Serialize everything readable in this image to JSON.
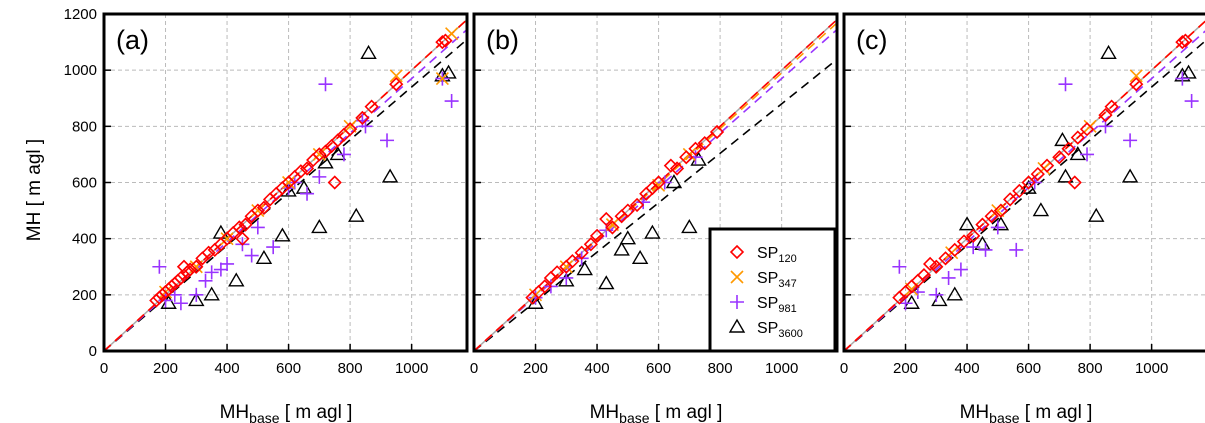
{
  "figure": {
    "ylabel": "MH [ m agl ]",
    "xlabel_main": "MH",
    "xlabel_sub": "base",
    "xlabel_unit": " [ m agl ]"
  },
  "legend": [
    {
      "name": "SP",
      "sub": "120",
      "marker": "diamond",
      "color": "#ff0000"
    },
    {
      "name": "SP",
      "sub": "347",
      "marker": "x",
      "color": "#ff9900"
    },
    {
      "name": "SP",
      "sub": "981",
      "marker": "plus",
      "color": "#9933ff"
    },
    {
      "name": "SP",
      "sub": "3600",
      "marker": "triangle",
      "color": "#000000"
    }
  ],
  "chart_data": [
    {
      "type": "scatter",
      "panel_label": "(a)",
      "xlim": [
        0,
        1180
      ],
      "ylim": [
        0,
        1200
      ],
      "xticks": [
        0,
        200,
        400,
        600,
        800,
        1000
      ],
      "yticks": [
        0,
        200,
        400,
        600,
        800,
        1000,
        1200
      ],
      "grid": true,
      "one_to_one_line": true,
      "fit_slopes": {
        "SP120": 1.0,
        "SP347": 1.0,
        "SP981": 0.97,
        "SP3600": 0.94
      },
      "series": [
        {
          "key": "SP120",
          "points": [
            [
              170,
              180
            ],
            [
              180,
              190
            ],
            [
              190,
              200
            ],
            [
              200,
              210
            ],
            [
              210,
              220
            ],
            [
              220,
              230
            ],
            [
              230,
              240
            ],
            [
              240,
              250
            ],
            [
              250,
              260
            ],
            [
              260,
              300
            ],
            [
              270,
              280
            ],
            [
              280,
              290
            ],
            [
              300,
              300
            ],
            [
              320,
              330
            ],
            [
              340,
              350
            ],
            [
              360,
              360
            ],
            [
              380,
              380
            ],
            [
              400,
              400
            ],
            [
              420,
              420
            ],
            [
              440,
              440
            ],
            [
              460,
              450
            ],
            [
              480,
              480
            ],
            [
              500,
              500
            ],
            [
              520,
              510
            ],
            [
              540,
              540
            ],
            [
              560,
              560
            ],
            [
              580,
              580
            ],
            [
              600,
              600
            ],
            [
              620,
              620
            ],
            [
              640,
              640
            ],
            [
              660,
              650
            ],
            [
              680,
              680
            ],
            [
              700,
              700
            ],
            [
              720,
              710
            ],
            [
              740,
              730
            ],
            [
              750,
              600
            ],
            [
              760,
              750
            ],
            [
              780,
              770
            ],
            [
              800,
              790
            ],
            [
              840,
              830
            ],
            [
              870,
              870
            ],
            [
              950,
              950
            ],
            [
              1100,
              1100
            ],
            [
              1110,
              1105
            ],
            [
              450,
              400
            ]
          ]
        },
        {
          "key": "SP347",
          "points": [
            [
              200,
              210
            ],
            [
              300,
              300
            ],
            [
              400,
              400
            ],
            [
              500,
              500
            ],
            [
              600,
              600
            ],
            [
              700,
              700
            ],
            [
              800,
              800
            ],
            [
              950,
              980
            ],
            [
              1130,
              1130
            ],
            [
              1100,
              970
            ]
          ]
        },
        {
          "key": "SP981",
          "points": [
            [
              180,
              300
            ],
            [
              200,
              180
            ],
            [
              230,
              200
            ],
            [
              250,
              170
            ],
            [
              300,
              200
            ],
            [
              330,
              250
            ],
            [
              350,
              280
            ],
            [
              380,
              290
            ],
            [
              400,
              310
            ],
            [
              450,
              380
            ],
            [
              480,
              340
            ],
            [
              500,
              440
            ],
            [
              550,
              370
            ],
            [
              600,
              580
            ],
            [
              620,
              600
            ],
            [
              660,
              560
            ],
            [
              700,
              620
            ],
            [
              720,
              950
            ],
            [
              780,
              700
            ],
            [
              840,
              820
            ],
            [
              850,
              800
            ],
            [
              920,
              750
            ],
            [
              1100,
              970
            ],
            [
              1130,
              890
            ]
          ]
        },
        {
          "key": "SP3600",
          "points": [
            [
              210,
              170
            ],
            [
              300,
              180
            ],
            [
              350,
              200
            ],
            [
              380,
              420
            ],
            [
              430,
              250
            ],
            [
              520,
              330
            ],
            [
              580,
              410
            ],
            [
              600,
              570
            ],
            [
              650,
              580
            ],
            [
              700,
              440
            ],
            [
              720,
              670
            ],
            [
              760,
              700
            ],
            [
              820,
              480
            ],
            [
              860,
              1060
            ],
            [
              930,
              620
            ],
            [
              1100,
              980
            ],
            [
              1120,
              990
            ]
          ]
        }
      ]
    },
    {
      "type": "scatter",
      "panel_label": "(b)",
      "xlim": [
        0,
        1180
      ],
      "ylim": [
        0,
        1200
      ],
      "xticks": [
        0,
        200,
        400,
        600,
        800,
        1000
      ],
      "yticks": [
        0,
        200,
        400,
        600,
        800,
        1000,
        1200
      ],
      "grid": true,
      "one_to_one_line": true,
      "fit_slopes": {
        "SP120": 1.0,
        "SP347": 0.99,
        "SP981": 0.97,
        "SP3600": 0.88
      },
      "series": [
        {
          "key": "SP120",
          "points": [
            [
              190,
              190
            ],
            [
              210,
              210
            ],
            [
              230,
              230
            ],
            [
              250,
              260
            ],
            [
              270,
              280
            ],
            [
              300,
              300
            ],
            [
              320,
              320
            ],
            [
              350,
              350
            ],
            [
              380,
              380
            ],
            [
              400,
              410
            ],
            [
              430,
              470
            ],
            [
              450,
              440
            ],
            [
              480,
              480
            ],
            [
              500,
              500
            ],
            [
              530,
              520
            ],
            [
              560,
              560
            ],
            [
              580,
              580
            ],
            [
              600,
              600
            ],
            [
              640,
              660
            ],
            [
              660,
              650
            ],
            [
              690,
              690
            ],
            [
              720,
              720
            ],
            [
              750,
              740
            ],
            [
              790,
              780
            ]
          ]
        },
        {
          "key": "SP347",
          "points": [
            [
              200,
              200
            ],
            [
              300,
              300
            ],
            [
              450,
              450
            ],
            [
              600,
              590
            ],
            [
              700,
              700
            ]
          ]
        },
        {
          "key": "SP981",
          "points": [
            [
              200,
              190
            ],
            [
              250,
              230
            ],
            [
              300,
              260
            ],
            [
              350,
              330
            ],
            [
              430,
              430
            ],
            [
              550,
              530
            ],
            [
              620,
              600
            ],
            [
              720,
              690
            ]
          ]
        },
        {
          "key": "SP3600",
          "points": [
            [
              200,
              170
            ],
            [
              300,
              250
            ],
            [
              360,
              290
            ],
            [
              430,
              240
            ],
            [
              480,
              360
            ],
            [
              500,
              400
            ],
            [
              540,
              330
            ],
            [
              580,
              420
            ],
            [
              650,
              600
            ],
            [
              700,
              440
            ],
            [
              730,
              680
            ]
          ]
        }
      ]
    },
    {
      "type": "scatter",
      "panel_label": "(c)",
      "xlim": [
        0,
        1180
      ],
      "ylim": [
        0,
        1200
      ],
      "xticks": [
        0,
        200,
        400,
        600,
        800,
        1000
      ],
      "yticks": [
        0,
        200,
        400,
        600,
        800,
        1000,
        1200
      ],
      "grid": true,
      "one_to_one_line": true,
      "fit_slopes": {
        "SP120": 1.0,
        "SP347": 1.0,
        "SP981": 0.97,
        "SP3600": 0.94
      },
      "series": [
        {
          "key": "SP120",
          "points": [
            [
              180,
              190
            ],
            [
              200,
              210
            ],
            [
              220,
              230
            ],
            [
              240,
              250
            ],
            [
              260,
              270
            ],
            [
              280,
              310
            ],
            [
              300,
              300
            ],
            [
              330,
              330
            ],
            [
              360,
              360
            ],
            [
              390,
              390
            ],
            [
              420,
              410
            ],
            [
              450,
              450
            ],
            [
              480,
              480
            ],
            [
              510,
              500
            ],
            [
              540,
              540
            ],
            [
              570,
              570
            ],
            [
              600,
              600
            ],
            [
              630,
              630
            ],
            [
              660,
              660
            ],
            [
              700,
              690
            ],
            [
              730,
              720
            ],
            [
              750,
              600
            ],
            [
              760,
              760
            ],
            [
              790,
              790
            ],
            [
              850,
              840
            ],
            [
              870,
              870
            ],
            [
              950,
              950
            ],
            [
              1100,
              1100
            ],
            [
              1110,
              1105
            ]
          ]
        },
        {
          "key": "SP347",
          "points": [
            [
              220,
              220
            ],
            [
              350,
              350
            ],
            [
              500,
              500
            ],
            [
              650,
              650
            ],
            [
              800,
              800
            ],
            [
              950,
              980
            ]
          ]
        },
        {
          "key": "SP981",
          "points": [
            [
              180,
              300
            ],
            [
              200,
              170
            ],
            [
              240,
              210
            ],
            [
              300,
              200
            ],
            [
              340,
              260
            ],
            [
              380,
              290
            ],
            [
              420,
              370
            ],
            [
              460,
              360
            ],
            [
              500,
              440
            ],
            [
              560,
              360
            ],
            [
              620,
              600
            ],
            [
              720,
              950
            ],
            [
              790,
              700
            ],
            [
              850,
              800
            ],
            [
              930,
              750
            ],
            [
              1100,
              970
            ],
            [
              1130,
              890
            ]
          ]
        },
        {
          "key": "SP3600",
          "points": [
            [
              220,
              170
            ],
            [
              310,
              180
            ],
            [
              360,
              200
            ],
            [
              400,
              450
            ],
            [
              450,
              380
            ],
            [
              510,
              450
            ],
            [
              600,
              580
            ],
            [
              640,
              500
            ],
            [
              710,
              750
            ],
            [
              720,
              620
            ],
            [
              760,
              700
            ],
            [
              820,
              480
            ],
            [
              860,
              1060
            ],
            [
              930,
              620
            ],
            [
              1100,
              980
            ],
            [
              1120,
              990
            ]
          ]
        }
      ]
    }
  ]
}
